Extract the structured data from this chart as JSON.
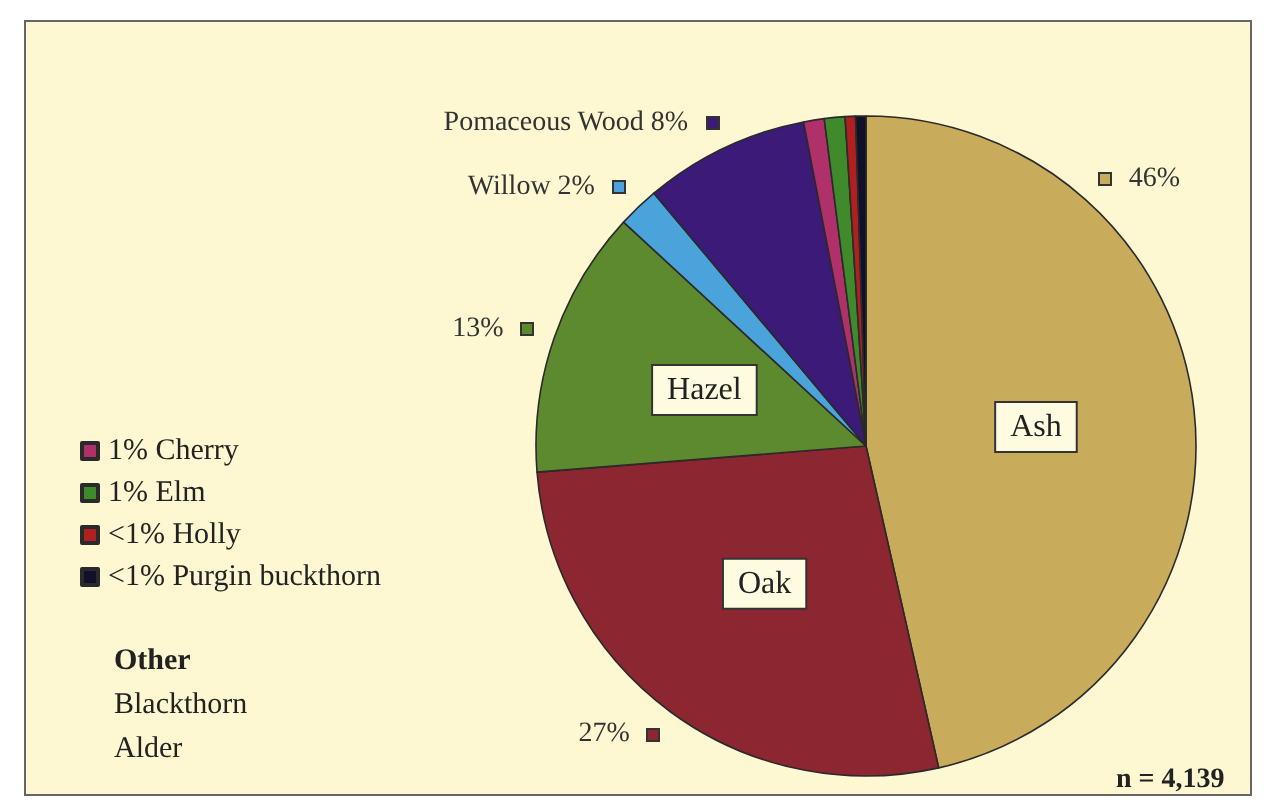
{
  "chart_data": {
    "type": "pie",
    "categories": [
      "Ash",
      "Oak",
      "Hazel",
      "Willow",
      "Pomaceous Wood",
      "Cherry",
      "Elm",
      "Holly",
      "Purgin buckthorn"
    ],
    "values": [
      46,
      27,
      13,
      2,
      8,
      1,
      1,
      0.5,
      0.5
    ],
    "value_labels": [
      "46%",
      "27%",
      "13%",
      "2%",
      "8%",
      "1%",
      "1%",
      "<1%",
      "<1%"
    ],
    "colors": [
      "#c9ab5c",
      "#8c2630",
      "#5d8a2e",
      "#4ba3dc",
      "#3b1a78",
      "#b0306a",
      "#3f8a2a",
      "#b02020",
      "#101028"
    ],
    "legend": "left",
    "annotations": [
      "Other",
      "Blackthorn",
      "Alder",
      "n = 4,139"
    ]
  }
}
